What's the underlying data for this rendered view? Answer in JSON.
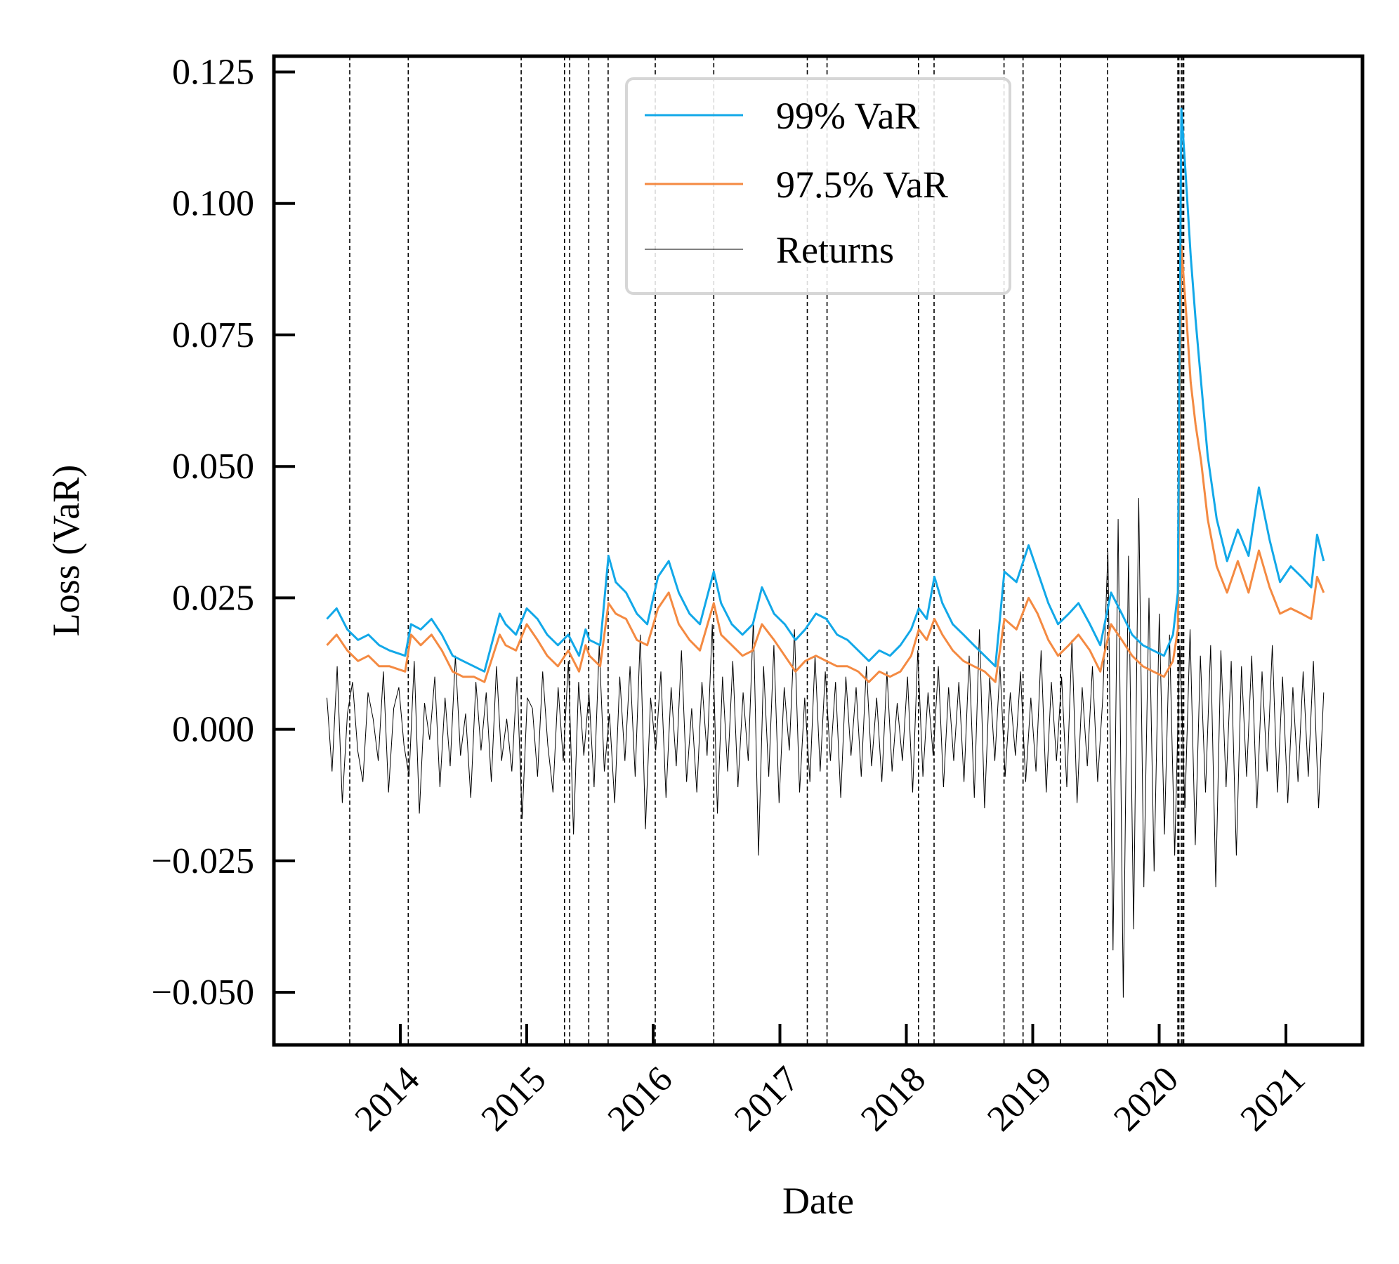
{
  "chart_data": {
    "type": "line",
    "xlabel": "Date",
    "ylabel": "Loss (VaR)",
    "xlim": [
      "2013-01-01",
      "2021-08-10"
    ],
    "ylim": [
      -0.06,
      0.128
    ],
    "x_ticks": [
      "2014",
      "2015",
      "2016",
      "2017",
      "2018",
      "2019",
      "2020",
      "2021"
    ],
    "y_ticks": [
      "0.125",
      "0.100",
      "0.075",
      "0.050",
      "0.025",
      "0.000",
      "−0.025",
      "−0.050"
    ],
    "y_tick_values": [
      0.125,
      0.1,
      0.075,
      0.05,
      0.025,
      0.0,
      -0.025,
      -0.05
    ],
    "legend": {
      "placement": "top-center",
      "entries": [
        "99% VaR",
        "97.5% VaR",
        "Returns"
      ]
    },
    "grid": false,
    "series": [
      {
        "name": "99% VaR",
        "color": "#12a8e8",
        "x": [
          "2013-06-03",
          "2013-07-01",
          "2013-08-01",
          "2013-09-01",
          "2013-10-01",
          "2013-11-01",
          "2013-12-01",
          "2014-01-15",
          "2014-02-01",
          "2014-03-01",
          "2014-04-01",
          "2014-05-01",
          "2014-06-01",
          "2014-07-01",
          "2014-08-01",
          "2014-09-01",
          "2014-10-15",
          "2014-11-01",
          "2014-12-01",
          "2015-01-01",
          "2015-02-01",
          "2015-03-01",
          "2015-04-01",
          "2015-05-01",
          "2015-06-01",
          "2015-06-20",
          "2015-07-01",
          "2015-08-01",
          "2015-08-25",
          "2015-09-15",
          "2015-10-15",
          "2015-11-15",
          "2015-12-15",
          "2016-01-15",
          "2016-02-15",
          "2016-03-15",
          "2016-04-15",
          "2016-05-15",
          "2016-06-24",
          "2016-07-15",
          "2016-08-15",
          "2016-09-15",
          "2016-10-15",
          "2016-11-10",
          "2016-12-15",
          "2017-01-15",
          "2017-02-15",
          "2017-03-15",
          "2017-04-15",
          "2017-05-15",
          "2017-06-15",
          "2017-07-15",
          "2017-08-15",
          "2017-09-15",
          "2017-10-15",
          "2017-11-15",
          "2017-12-15",
          "2018-01-15",
          "2018-02-06",
          "2018-03-01",
          "2018-03-23",
          "2018-04-15",
          "2018-05-15",
          "2018-06-15",
          "2018-07-15",
          "2018-08-15",
          "2018-09-15",
          "2018-10-11",
          "2018-11-15",
          "2018-12-20",
          "2019-01-15",
          "2019-02-15",
          "2019-03-15",
          "2019-04-15",
          "2019-05-13",
          "2019-06-15",
          "2019-07-15",
          "2019-08-15",
          "2019-09-15",
          "2019-10-15",
          "2019-11-15",
          "2019-12-15",
          "2020-01-15",
          "2020-02-10",
          "2020-02-24",
          "2020-03-05",
          "2020-03-18",
          "2020-04-01",
          "2020-04-15",
          "2020-05-01",
          "2020-05-20",
          "2020-06-15",
          "2020-07-15",
          "2020-08-15",
          "2020-09-15",
          "2020-10-15",
          "2020-11-15",
          "2020-12-15",
          "2021-01-15",
          "2021-02-15",
          "2021-03-15",
          "2021-04-01",
          "2021-04-20"
        ],
        "y": [
          0.021,
          0.023,
          0.019,
          0.017,
          0.018,
          0.016,
          0.015,
          0.014,
          0.02,
          0.019,
          0.021,
          0.018,
          0.014,
          0.013,
          0.012,
          0.011,
          0.022,
          0.02,
          0.018,
          0.023,
          0.021,
          0.018,
          0.016,
          0.018,
          0.014,
          0.019,
          0.017,
          0.016,
          0.033,
          0.028,
          0.026,
          0.022,
          0.02,
          0.029,
          0.032,
          0.026,
          0.022,
          0.02,
          0.03,
          0.024,
          0.02,
          0.018,
          0.02,
          0.027,
          0.022,
          0.02,
          0.017,
          0.019,
          0.022,
          0.021,
          0.018,
          0.017,
          0.015,
          0.013,
          0.015,
          0.014,
          0.016,
          0.019,
          0.023,
          0.021,
          0.029,
          0.024,
          0.02,
          0.018,
          0.016,
          0.014,
          0.012,
          0.03,
          0.028,
          0.035,
          0.03,
          0.024,
          0.02,
          0.022,
          0.024,
          0.02,
          0.016,
          0.026,
          0.022,
          0.018,
          0.016,
          0.015,
          0.014,
          0.018,
          0.026,
          0.118,
          0.105,
          0.09,
          0.078,
          0.066,
          0.052,
          0.04,
          0.032,
          0.038,
          0.033,
          0.046,
          0.036,
          0.028,
          0.031,
          0.029,
          0.027,
          0.037,
          0.032
        ]
      },
      {
        "name": "97.5% VaR",
        "color": "#f48a42",
        "x": [
          "2013-06-03",
          "2013-07-01",
          "2013-08-01",
          "2013-09-01",
          "2013-10-01",
          "2013-11-01",
          "2013-12-01",
          "2014-01-15",
          "2014-02-01",
          "2014-03-01",
          "2014-04-01",
          "2014-05-01",
          "2014-06-01",
          "2014-07-01",
          "2014-08-01",
          "2014-09-01",
          "2014-10-15",
          "2014-11-01",
          "2014-12-01",
          "2015-01-01",
          "2015-02-01",
          "2015-03-01",
          "2015-04-01",
          "2015-05-01",
          "2015-06-01",
          "2015-06-20",
          "2015-07-01",
          "2015-08-01",
          "2015-08-25",
          "2015-09-15",
          "2015-10-15",
          "2015-11-15",
          "2015-12-15",
          "2016-01-15",
          "2016-02-15",
          "2016-03-15",
          "2016-04-15",
          "2016-05-15",
          "2016-06-24",
          "2016-07-15",
          "2016-08-15",
          "2016-09-15",
          "2016-10-15",
          "2016-11-10",
          "2016-12-15",
          "2017-01-15",
          "2017-02-15",
          "2017-03-15",
          "2017-04-15",
          "2017-05-15",
          "2017-06-15",
          "2017-07-15",
          "2017-08-15",
          "2017-09-15",
          "2017-10-15",
          "2017-11-15",
          "2017-12-15",
          "2018-01-15",
          "2018-02-06",
          "2018-03-01",
          "2018-03-23",
          "2018-04-15",
          "2018-05-15",
          "2018-06-15",
          "2018-07-15",
          "2018-08-15",
          "2018-09-15",
          "2018-10-11",
          "2018-11-15",
          "2018-12-20",
          "2019-01-15",
          "2019-02-15",
          "2019-03-15",
          "2019-04-15",
          "2019-05-13",
          "2019-06-15",
          "2019-07-15",
          "2019-08-15",
          "2019-09-15",
          "2019-10-15",
          "2019-11-15",
          "2019-12-15",
          "2020-01-15",
          "2020-02-10",
          "2020-02-24",
          "2020-03-05",
          "2020-03-18",
          "2020-04-01",
          "2020-04-15",
          "2020-05-01",
          "2020-05-20",
          "2020-06-15",
          "2020-07-15",
          "2020-08-15",
          "2020-09-15",
          "2020-10-15",
          "2020-11-15",
          "2020-12-15",
          "2021-01-15",
          "2021-02-15",
          "2021-03-15",
          "2021-04-01",
          "2021-04-20"
        ],
        "y": [
          0.016,
          0.018,
          0.015,
          0.013,
          0.014,
          0.012,
          0.012,
          0.011,
          0.018,
          0.016,
          0.018,
          0.015,
          0.011,
          0.01,
          0.01,
          0.009,
          0.018,
          0.016,
          0.015,
          0.02,
          0.017,
          0.014,
          0.012,
          0.015,
          0.011,
          0.016,
          0.014,
          0.012,
          0.024,
          0.022,
          0.021,
          0.017,
          0.016,
          0.023,
          0.026,
          0.02,
          0.017,
          0.015,
          0.024,
          0.018,
          0.016,
          0.014,
          0.015,
          0.02,
          0.017,
          0.014,
          0.011,
          0.013,
          0.014,
          0.013,
          0.012,
          0.012,
          0.011,
          0.009,
          0.011,
          0.01,
          0.011,
          0.014,
          0.019,
          0.017,
          0.021,
          0.018,
          0.015,
          0.013,
          0.012,
          0.011,
          0.009,
          0.021,
          0.019,
          0.025,
          0.022,
          0.017,
          0.014,
          0.016,
          0.018,
          0.015,
          0.011,
          0.02,
          0.017,
          0.014,
          0.012,
          0.011,
          0.01,
          0.013,
          0.019,
          0.092,
          0.08,
          0.066,
          0.058,
          0.051,
          0.04,
          0.031,
          0.026,
          0.032,
          0.026,
          0.034,
          0.027,
          0.022,
          0.023,
          0.022,
          0.021,
          0.029,
          0.026
        ]
      },
      {
        "name": "Returns",
        "color": "#000000",
        "x_start": "2013-06-03",
        "x_end": "2021-04-20",
        "y": [
          0.006,
          -0.008,
          0.012,
          -0.014,
          0.003,
          0.009,
          -0.004,
          -0.01,
          0.007,
          0.002,
          -0.006,
          0.011,
          -0.012,
          0.004,
          0.008,
          -0.003,
          -0.009,
          0.013,
          -0.016,
          0.005,
          -0.002,
          0.01,
          -0.011,
          0.006,
          -0.007,
          0.014,
          -0.005,
          0.003,
          -0.013,
          0.009,
          -0.004,
          0.007,
          -0.01,
          0.012,
          -0.006,
          0.002,
          -0.008,
          0.01,
          -0.017,
          0.006,
          0.004,
          -0.009,
          0.011,
          -0.003,
          -0.012,
          0.008,
          -0.006,
          0.013,
          -0.02,
          0.009,
          -0.005,
          0.007,
          -0.011,
          0.016,
          -0.008,
          0.003,
          -0.014,
          0.01,
          -0.006,
          0.012,
          -0.009,
          0.018,
          -0.019,
          0.006,
          -0.004,
          0.011,
          -0.013,
          0.008,
          -0.007,
          0.015,
          -0.01,
          0.004,
          -0.012,
          0.009,
          -0.005,
          0.02,
          -0.016,
          0.01,
          -0.008,
          0.013,
          -0.011,
          0.007,
          -0.006,
          0.021,
          -0.024,
          0.012,
          -0.009,
          0.016,
          -0.014,
          0.008,
          -0.004,
          0.019,
          -0.012,
          0.006,
          -0.01,
          0.014,
          -0.008,
          0.011,
          -0.006,
          0.009,
          -0.013,
          0.01,
          -0.005,
          0.008,
          -0.009,
          0.012,
          -0.007,
          0.006,
          -0.01,
          0.011,
          -0.008,
          0.005,
          -0.006,
          0.01,
          -0.012,
          0.015,
          -0.009,
          0.007,
          -0.005,
          0.012,
          -0.011,
          0.008,
          -0.006,
          0.009,
          -0.01,
          0.014,
          -0.013,
          0.019,
          -0.015,
          0.01,
          -0.006,
          0.012,
          -0.009,
          0.007,
          -0.005,
          0.011,
          -0.01,
          0.006,
          -0.008,
          0.015,
          -0.012,
          0.009,
          -0.006,
          0.01,
          -0.011,
          0.017,
          -0.014,
          0.008,
          -0.007,
          0.012,
          -0.01,
          0.006,
          0.034,
          -0.042,
          0.04,
          -0.051,
          0.033,
          -0.038,
          0.044,
          -0.03,
          0.025,
          -0.027,
          0.022,
          -0.02,
          0.018,
          -0.024,
          0.016,
          -0.015,
          0.019,
          -0.022,
          0.014,
          -0.012,
          0.016,
          -0.03,
          0.015,
          -0.011,
          0.013,
          -0.024,
          0.012,
          -0.009,
          0.014,
          -0.015,
          0.011,
          -0.008,
          0.016,
          -0.012,
          0.01,
          -0.014,
          0.008,
          -0.01,
          0.011,
          -0.009,
          0.013,
          -0.015,
          0.007
        ]
      }
    ],
    "exceedance_date_lines": [
      "2013-08-08",
      "2014-01-24",
      "2014-12-16",
      "2015-04-20",
      "2015-05-05",
      "2015-06-29",
      "2015-08-24",
      "2016-01-07",
      "2016-06-24",
      "2017-03-21",
      "2017-05-17",
      "2018-02-05",
      "2018-03-22",
      "2018-10-10",
      "2018-12-04",
      "2019-03-22",
      "2019-08-05",
      "2020-02-24",
      "2020-02-27",
      "2020-03-05",
      "2020-03-09",
      "2020-03-12"
    ]
  }
}
